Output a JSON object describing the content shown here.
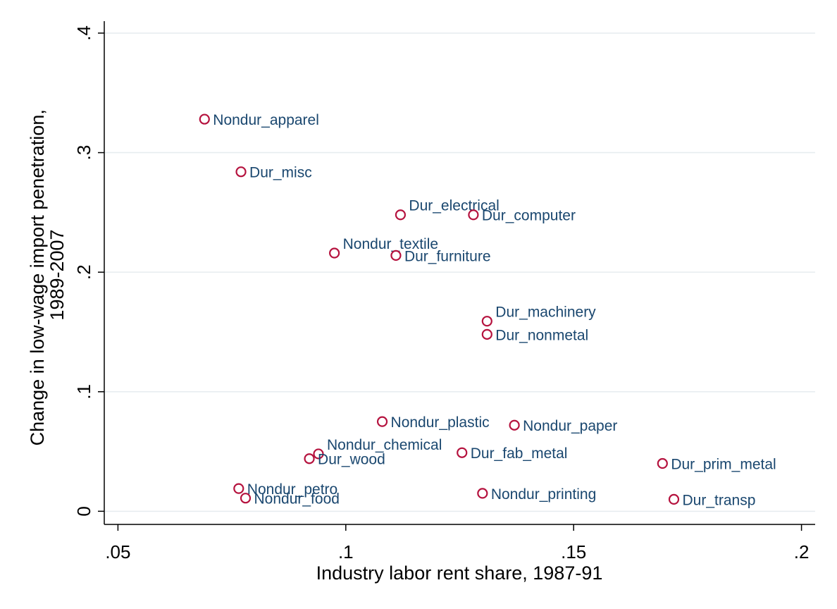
{
  "chart_data": {
    "type": "scatter",
    "title": "",
    "xlabel": "Industry labor rent share, 1987-91",
    "ylabel_lines": [
      "Change in low-wage import penetration,",
      "1989-2007"
    ],
    "xlim": [
      0.047,
      0.203
    ],
    "ylim": [
      -0.011,
      0.41
    ],
    "x_ticks": [
      {
        "value": 0.05,
        "label": ".05"
      },
      {
        "value": 0.1,
        "label": ".1"
      },
      {
        "value": 0.15,
        "label": ".15"
      },
      {
        "value": 0.2,
        "label": ".2"
      }
    ],
    "y_ticks": [
      {
        "value": 0,
        "label": "0"
      },
      {
        "value": 0.1,
        "label": ".1"
      },
      {
        "value": 0.2,
        "label": ".2"
      },
      {
        "value": 0.3,
        "label": ".3"
      },
      {
        "value": 0.4,
        "label": ".4"
      }
    ],
    "grid": "horizontal",
    "legend": "none",
    "marker_color": "#b5123e",
    "label_color": "#1a476f",
    "points": [
      {
        "label": "Nondur_apparel",
        "x": 0.069,
        "y": 0.328
      },
      {
        "label": "Dur_misc",
        "x": 0.077,
        "y": 0.284
      },
      {
        "label": "Dur_electrical",
        "x": 0.112,
        "y": 0.248,
        "pos": "up"
      },
      {
        "label": "Dur_computer",
        "x": 0.128,
        "y": 0.248
      },
      {
        "label": "Nondur_textile",
        "x": 0.0975,
        "y": 0.216,
        "pos": "up"
      },
      {
        "label": "Dur_furniture",
        "x": 0.111,
        "y": 0.214
      },
      {
        "label": "Dur_machinery",
        "x": 0.131,
        "y": 0.159,
        "pos": "up"
      },
      {
        "label": "Dur_nonmetal",
        "x": 0.131,
        "y": 0.148
      },
      {
        "label": "Nondur_plastic",
        "x": 0.108,
        "y": 0.075
      },
      {
        "label": "Nondur_paper",
        "x": 0.137,
        "y": 0.072
      },
      {
        "label": "Nondur_chemical",
        "x": 0.094,
        "y": 0.048,
        "pos": "up"
      },
      {
        "label": "Dur_wood",
        "x": 0.092,
        "y": 0.044
      },
      {
        "label": "Dur_fab_metal",
        "x": 0.1255,
        "y": 0.049
      },
      {
        "label": "Dur_prim_metal",
        "x": 0.1695,
        "y": 0.04
      },
      {
        "label": "Nondur_petro",
        "x": 0.0765,
        "y": 0.019
      },
      {
        "label": "Nondur_food",
        "x": 0.078,
        "y": 0.011
      },
      {
        "label": "Nondur_printing",
        "x": 0.13,
        "y": 0.015
      },
      {
        "label": "Dur_transp",
        "x": 0.172,
        "y": 0.01
      }
    ]
  }
}
